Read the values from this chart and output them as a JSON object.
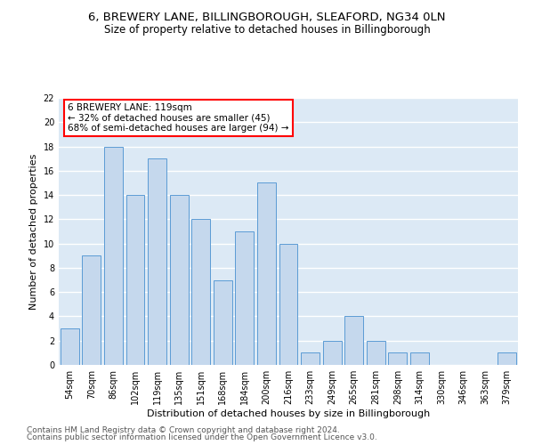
{
  "title1": "6, BREWERY LANE, BILLINGBOROUGH, SLEAFORD, NG34 0LN",
  "title2": "Size of property relative to detached houses in Billingborough",
  "xlabel": "Distribution of detached houses by size in Billingborough",
  "ylabel": "Number of detached properties",
  "categories": [
    "54sqm",
    "70sqm",
    "86sqm",
    "102sqm",
    "119sqm",
    "135sqm",
    "151sqm",
    "168sqm",
    "184sqm",
    "200sqm",
    "216sqm",
    "233sqm",
    "249sqm",
    "265sqm",
    "281sqm",
    "298sqm",
    "314sqm",
    "330sqm",
    "346sqm",
    "363sqm",
    "379sqm"
  ],
  "values": [
    3,
    9,
    18,
    14,
    17,
    14,
    12,
    7,
    11,
    15,
    10,
    1,
    2,
    4,
    2,
    1,
    1,
    0,
    0,
    0,
    1
  ],
  "highlight_index": 4,
  "bar_color": "#c5d8ed",
  "bar_edgecolor": "#5b9bd5",
  "annotation_text": "6 BREWERY LANE: 119sqm\n← 32% of detached houses are smaller (45)\n68% of semi-detached houses are larger (94) →",
  "annotation_box_color": "white",
  "annotation_box_edgecolor": "red",
  "footer1": "Contains HM Land Registry data © Crown copyright and database right 2024.",
  "footer2": "Contains public sector information licensed under the Open Government Licence v3.0.",
  "ylim": [
    0,
    22
  ],
  "yticks": [
    0,
    2,
    4,
    6,
    8,
    10,
    12,
    14,
    16,
    18,
    20,
    22
  ],
  "background_color": "#dce9f5",
  "grid_color": "white",
  "title1_fontsize": 9.5,
  "title2_fontsize": 8.5,
  "annotation_fontsize": 7.5,
  "axis_label_fontsize": 8,
  "tick_fontsize": 7,
  "footer_fontsize": 6.5
}
